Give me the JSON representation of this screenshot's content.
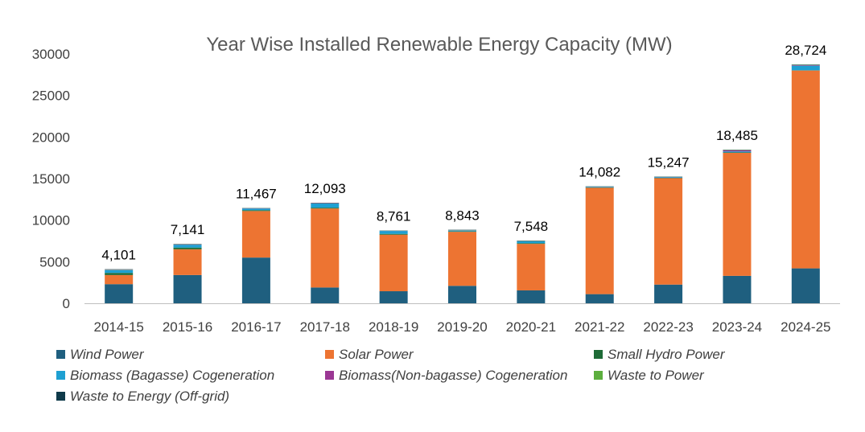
{
  "chart_data": {
    "type": "bar",
    "stacked": true,
    "title": "Year Wise Installed Renewable Energy Capacity (MW)",
    "xlabel": "",
    "ylabel": "",
    "ylim": [
      0,
      30000
    ],
    "yticks": [
      "0",
      "5000",
      "10000",
      "15000",
      "20000",
      "25000",
      "30000"
    ],
    "ytick_values": [
      0,
      5000,
      10000,
      15000,
      20000,
      25000,
      30000
    ],
    "grid": false,
    "legend_position": "bottom",
    "categories": [
      "2014-15",
      "2015-16",
      "2016-17",
      "2017-18",
      "2018-19",
      "2019-20",
      "2020-21",
      "2021-22",
      "2022-23",
      "2023-24",
      "2024-25"
    ],
    "totals": [
      4101,
      7141,
      11467,
      12093,
      8761,
      8843,
      7548,
      14082,
      15247,
      18485,
      28724
    ],
    "total_labels": [
      "4,101",
      "7,141",
      "11,467",
      "12,093",
      "8,761",
      "8,843",
      "7,548",
      "14,082",
      "15,247",
      "18,485",
      "28,724"
    ],
    "series": [
      {
        "name": "Wind Power",
        "color": "#1f5f7f",
        "values": [
          2300,
          3400,
          5500,
          1900,
          1450,
          2100,
          1550,
          1100,
          2250,
          3300,
          4200
        ]
      },
      {
        "name": "Solar Power",
        "color": "#ed7432",
        "values": [
          1100,
          3100,
          5600,
          9500,
          6800,
          6500,
          5600,
          12800,
          12800,
          14800,
          23800
        ]
      },
      {
        "name": "Small Hydro Power",
        "color": "#1e6b37",
        "values": [
          250,
          200,
          100,
          100,
          100,
          50,
          80,
          50,
          40,
          50,
          30
        ]
      },
      {
        "name": "Biomass (Bagasse) Cogeneration",
        "color": "#1ea0d2",
        "values": [
          350,
          350,
          200,
          500,
          350,
          100,
          230,
          70,
          90,
          120,
          550
        ]
      },
      {
        "name": "Biomass(Non-bagasse) Cogeneration",
        "color": "#9b3794",
        "values": [
          40,
          40,
          20,
          40,
          20,
          30,
          20,
          20,
          20,
          140,
          60
        ]
      },
      {
        "name": "Waste to Power",
        "color": "#5cae3e",
        "values": [
          30,
          20,
          20,
          20,
          20,
          30,
          30,
          20,
          20,
          40,
          40
        ]
      },
      {
        "name": "Waste to Energy (Off-grid)",
        "color": "#0f3a4a",
        "values": [
          31,
          31,
          27,
          33,
          21,
          33,
          38,
          22,
          27,
          35,
          44
        ]
      }
    ]
  }
}
